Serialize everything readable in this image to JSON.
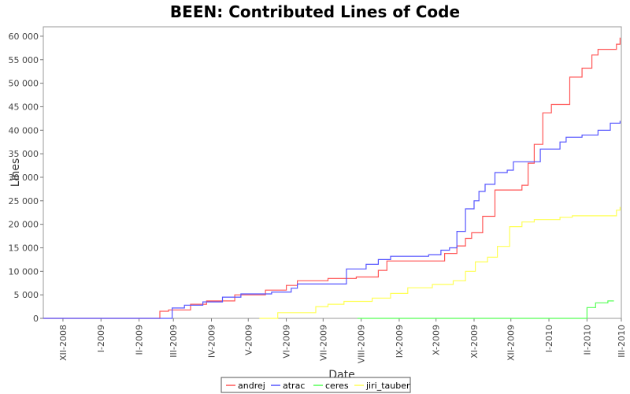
{
  "chart_data": {
    "type": "line",
    "step": true,
    "title": "BEEN: Contributed Lines of Code",
    "xlabel": "Date",
    "ylabel": "Lines",
    "ylim": [
      0,
      62000
    ],
    "yticks": [
      0,
      5000,
      10000,
      15000,
      20000,
      25000,
      30000,
      35000,
      40000,
      45000,
      50000,
      55000,
      60000
    ],
    "ytick_labels": [
      "0",
      "5 000",
      "10 000",
      "15 000",
      "20 000",
      "25 000",
      "30 000",
      "35 000",
      "40 000",
      "45 000",
      "50 000",
      "55 000",
      "60 000"
    ],
    "xlim": [
      "2008-11-15",
      "2010-03-01"
    ],
    "xticks": [
      "2008-12-01",
      "2009-01-01",
      "2009-02-01",
      "2009-03-01",
      "2009-04-01",
      "2009-05-01",
      "2009-06-01",
      "2009-07-01",
      "2009-08-01",
      "2009-09-01",
      "2009-10-01",
      "2009-11-01",
      "2009-12-01",
      "2010-01-01",
      "2010-02-01",
      "2010-03-01"
    ],
    "xtick_labels": [
      "XII-2008",
      "I-2009",
      "II-2009",
      "III-2009",
      "IV-2009",
      "V-2009",
      "VI-2009",
      "VII-2009",
      "VIII-2009",
      "IX-2009",
      "X-2009",
      "XI-2009",
      "XII-2009",
      "I-2010",
      "II-2010",
      "III-2010"
    ],
    "grid": false,
    "legend": "bottom-center",
    "series": [
      {
        "name": "andrej",
        "color": "#ff5555",
        "points": [
          [
            "2008-11-15",
            0
          ],
          [
            "2009-02-18",
            0
          ],
          [
            "2009-02-18",
            1500
          ],
          [
            "2009-02-25",
            1500
          ],
          [
            "2009-02-25",
            1800
          ],
          [
            "2009-03-15",
            1800
          ],
          [
            "2009-03-15",
            3000
          ],
          [
            "2009-03-28",
            3000
          ],
          [
            "2009-03-28",
            3700
          ],
          [
            "2009-04-20",
            3700
          ],
          [
            "2009-04-20",
            5000
          ],
          [
            "2009-05-15",
            5000
          ],
          [
            "2009-05-15",
            6000
          ],
          [
            "2009-06-01",
            6000
          ],
          [
            "2009-06-01",
            7000
          ],
          [
            "2009-06-10",
            7000
          ],
          [
            "2009-06-10",
            8000
          ],
          [
            "2009-07-05",
            8000
          ],
          [
            "2009-07-05",
            8500
          ],
          [
            "2009-07-28",
            8500
          ],
          [
            "2009-07-28",
            8800
          ],
          [
            "2009-08-15",
            8800
          ],
          [
            "2009-08-15",
            10200
          ],
          [
            "2009-08-22",
            10200
          ],
          [
            "2009-08-22",
            12200
          ],
          [
            "2009-10-08",
            12200
          ],
          [
            "2009-10-08",
            13800
          ],
          [
            "2009-10-18",
            13800
          ],
          [
            "2009-10-18",
            15400
          ],
          [
            "2009-10-25",
            15400
          ],
          [
            "2009-10-25",
            17000
          ],
          [
            "2009-10-30",
            17000
          ],
          [
            "2009-10-30",
            18200
          ],
          [
            "2009-11-08",
            18200
          ],
          [
            "2009-11-08",
            21700
          ],
          [
            "2009-11-18",
            21700
          ],
          [
            "2009-11-18",
            27300
          ],
          [
            "2009-12-10",
            27300
          ],
          [
            "2009-12-10",
            28300
          ],
          [
            "2009-12-15",
            28300
          ],
          [
            "2009-12-15",
            33000
          ],
          [
            "2009-12-20",
            33000
          ],
          [
            "2009-12-20",
            37000
          ],
          [
            "2009-12-27",
            37000
          ],
          [
            "2009-12-27",
            43700
          ],
          [
            "2010-01-03",
            43700
          ],
          [
            "2010-01-03",
            45500
          ],
          [
            "2010-01-18",
            45500
          ],
          [
            "2010-01-18",
            51300
          ],
          [
            "2010-01-28",
            51300
          ],
          [
            "2010-01-28",
            53200
          ],
          [
            "2010-02-05",
            53200
          ],
          [
            "2010-02-05",
            56000
          ],
          [
            "2010-02-10",
            56000
          ],
          [
            "2010-02-10",
            57200
          ],
          [
            "2010-02-25",
            57200
          ],
          [
            "2010-02-25",
            58300
          ],
          [
            "2010-02-28",
            58300
          ],
          [
            "2010-02-28",
            59700
          ]
        ]
      },
      {
        "name": "atrac",
        "color": "#5555ff",
        "points": [
          [
            "2008-11-15",
            0
          ],
          [
            "2009-02-28",
            0
          ],
          [
            "2009-02-28",
            2200
          ],
          [
            "2009-03-10",
            2200
          ],
          [
            "2009-03-10",
            2800
          ],
          [
            "2009-03-25",
            2800
          ],
          [
            "2009-03-25",
            3500
          ],
          [
            "2009-04-10",
            3500
          ],
          [
            "2009-04-10",
            4500
          ],
          [
            "2009-04-25",
            4500
          ],
          [
            "2009-04-25",
            5200
          ],
          [
            "2009-05-20",
            5200
          ],
          [
            "2009-05-20",
            5600
          ],
          [
            "2009-06-05",
            5600
          ],
          [
            "2009-06-05",
            6400
          ],
          [
            "2009-06-10",
            6400
          ],
          [
            "2009-06-10",
            7300
          ],
          [
            "2009-07-20",
            7300
          ],
          [
            "2009-07-20",
            10500
          ],
          [
            "2009-08-05",
            10500
          ],
          [
            "2009-08-05",
            11500
          ],
          [
            "2009-08-15",
            11500
          ],
          [
            "2009-08-15",
            12500
          ],
          [
            "2009-08-25",
            12500
          ],
          [
            "2009-08-25",
            13200
          ],
          [
            "2009-09-25",
            13200
          ],
          [
            "2009-09-25",
            13500
          ],
          [
            "2009-10-05",
            13500
          ],
          [
            "2009-10-05",
            14500
          ],
          [
            "2009-10-12",
            14500
          ],
          [
            "2009-10-12",
            15000
          ],
          [
            "2009-10-18",
            15000
          ],
          [
            "2009-10-18",
            18500
          ],
          [
            "2009-10-25",
            18500
          ],
          [
            "2009-10-25",
            23300
          ],
          [
            "2009-11-01",
            23300
          ],
          [
            "2009-11-01",
            25000
          ],
          [
            "2009-11-05",
            25000
          ],
          [
            "2009-11-05",
            27000
          ],
          [
            "2009-11-10",
            27000
          ],
          [
            "2009-11-10",
            28500
          ],
          [
            "2009-11-18",
            28500
          ],
          [
            "2009-11-18",
            31000
          ],
          [
            "2009-11-28",
            31000
          ],
          [
            "2009-11-28",
            31500
          ],
          [
            "2009-12-03",
            31500
          ],
          [
            "2009-12-03",
            33300
          ],
          [
            "2009-12-25",
            33300
          ],
          [
            "2009-12-25",
            36000
          ],
          [
            "2010-01-10",
            36000
          ],
          [
            "2010-01-10",
            37500
          ],
          [
            "2010-01-15",
            37500
          ],
          [
            "2010-01-15",
            38500
          ],
          [
            "2010-01-28",
            38500
          ],
          [
            "2010-01-28",
            39000
          ],
          [
            "2010-02-10",
            39000
          ],
          [
            "2010-02-10",
            40000
          ],
          [
            "2010-02-20",
            40000
          ],
          [
            "2010-02-20",
            41500
          ],
          [
            "2010-02-28",
            41500
          ],
          [
            "2010-02-28",
            42000
          ]
        ]
      },
      {
        "name": "ceres",
        "color": "#55ff55",
        "points": [
          [
            "2009-07-29",
            0
          ],
          [
            "2010-02-01",
            0
          ],
          [
            "2010-02-01",
            2300
          ],
          [
            "2010-02-08",
            2300
          ],
          [
            "2010-02-08",
            3300
          ],
          [
            "2010-02-18",
            3300
          ],
          [
            "2010-02-18",
            3700
          ],
          [
            "2010-02-23",
            3700
          ]
        ]
      },
      {
        "name": "jiri_tauber",
        "color": "#ffff55",
        "points": [
          [
            "2009-05-10",
            0
          ],
          [
            "2009-05-25",
            0
          ],
          [
            "2009-05-25",
            1200
          ],
          [
            "2009-06-25",
            1200
          ],
          [
            "2009-06-25",
            2500
          ],
          [
            "2009-07-05",
            2500
          ],
          [
            "2009-07-05",
            3000
          ],
          [
            "2009-07-18",
            3000
          ],
          [
            "2009-07-18",
            3600
          ],
          [
            "2009-08-10",
            3600
          ],
          [
            "2009-08-10",
            4300
          ],
          [
            "2009-08-25",
            4300
          ],
          [
            "2009-08-25",
            5300
          ],
          [
            "2009-09-08",
            5300
          ],
          [
            "2009-09-08",
            6500
          ],
          [
            "2009-09-28",
            6500
          ],
          [
            "2009-09-28",
            7200
          ],
          [
            "2009-10-15",
            7200
          ],
          [
            "2009-10-15",
            8000
          ],
          [
            "2009-10-25",
            8000
          ],
          [
            "2009-10-25",
            10000
          ],
          [
            "2009-11-02",
            10000
          ],
          [
            "2009-11-02",
            12000
          ],
          [
            "2009-11-12",
            12000
          ],
          [
            "2009-11-12",
            13000
          ],
          [
            "2009-11-20",
            13000
          ],
          [
            "2009-11-20",
            15300
          ],
          [
            "2009-11-30",
            15300
          ],
          [
            "2009-11-30",
            19500
          ],
          [
            "2009-12-10",
            19500
          ],
          [
            "2009-12-10",
            20500
          ],
          [
            "2009-12-20",
            20500
          ],
          [
            "2009-12-20",
            21000
          ],
          [
            "2010-01-10",
            21000
          ],
          [
            "2010-01-10",
            21500
          ],
          [
            "2010-01-20",
            21500
          ],
          [
            "2010-01-20",
            21800
          ],
          [
            "2010-02-25",
            21800
          ],
          [
            "2010-02-25",
            23000
          ],
          [
            "2010-02-28",
            23000
          ],
          [
            "2010-02-28",
            23700
          ]
        ]
      }
    ]
  }
}
